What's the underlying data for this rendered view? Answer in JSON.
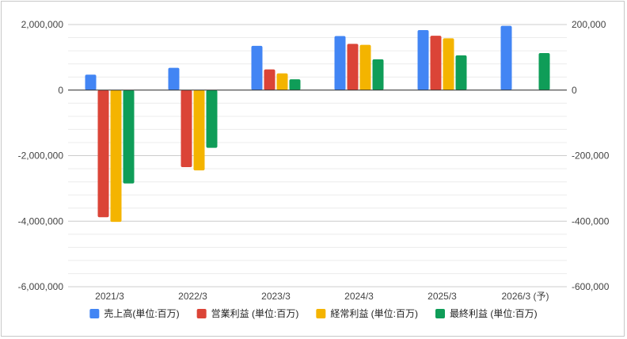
{
  "chart_data": {
    "type": "bar",
    "categories": [
      "2021/3",
      "2022/3",
      "2023/3",
      "2024/3",
      "2025/3",
      "2026/3 (予)"
    ],
    "series": [
      {
        "name": "売上高(単位:百万)",
        "axis": "left",
        "color": "#4285F4",
        "values": [
          470000,
          680000,
          1350000,
          1650000,
          1830000,
          1960000
        ]
      },
      {
        "name": "営業利益 (単位:百万)",
        "axis": "right",
        "color": "#DB4437",
        "values": [
          -388000,
          -235000,
          63000,
          141000,
          166000,
          null
        ]
      },
      {
        "name": "経常利益 (単位:百万)",
        "axis": "right",
        "color": "#F4B400",
        "values": [
          -402000,
          -245000,
          51000,
          138000,
          158000,
          null
        ]
      },
      {
        "name": "最終利益 (単位:百万)",
        "axis": "right",
        "color": "#0F9D58",
        "values": [
          -285000,
          -176000,
          33000,
          94000,
          106000,
          113000
        ]
      }
    ],
    "left_axis": {
      "ylim": [
        -6000000,
        2000000
      ],
      "ticks": [
        "2,000,000",
        "0",
        "-2,000,000",
        "-4,000,000",
        "-6,000,000"
      ],
      "tick_values": [
        2000000,
        0,
        -2000000,
        -4000000,
        -6000000
      ]
    },
    "right_axis": {
      "ylim": [
        -600000,
        200000
      ],
      "ticks": [
        "200,000",
        "0",
        "-200,000",
        "-400,000",
        "-600,000"
      ],
      "tick_values": [
        200000,
        0,
        -200000,
        -400000,
        -600000
      ]
    },
    "grid": true,
    "legend_position": "bottom"
  }
}
